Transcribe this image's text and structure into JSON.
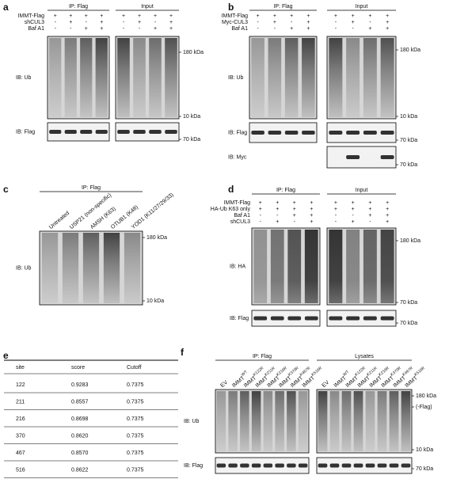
{
  "panels": [
    {
      "label": "a",
      "groups": [
        "IP: Flag",
        "Input"
      ],
      "conditions": [
        {
          "name": "IMMT-Flag",
          "signs": [
            "+",
            "+",
            "+",
            "+",
            "+",
            "+",
            "+",
            "+"
          ]
        },
        {
          "name": "shCUL3",
          "signs": [
            "-",
            "+",
            "-",
            "+",
            "-",
            "+",
            "-",
            "+"
          ]
        },
        {
          "name": "Baf A1",
          "signs": [
            "-",
            "-",
            "+",
            "+",
            "-",
            "-",
            "+",
            "+"
          ]
        }
      ],
      "blots": [
        {
          "label": "IB: Ub",
          "markers": [
            "180 kDa",
            "10 kDa"
          ]
        },
        {
          "label": "IB: Flag",
          "markers": [
            "70 kDa"
          ]
        }
      ]
    },
    {
      "label": "b",
      "groups": [
        "IP: Flag",
        "Input"
      ],
      "conditions": [
        {
          "name": "IMMT-Flag",
          "signs": [
            "+",
            "+",
            "+",
            "+",
            "+",
            "+",
            "+",
            "+"
          ]
        },
        {
          "name": "Myc-CUL3",
          "signs": [
            "-",
            "+",
            "-",
            "+",
            "-",
            "+",
            "-",
            "+"
          ]
        },
        {
          "name": "Baf A1",
          "signs": [
            "-",
            "-",
            "+",
            "+",
            "-",
            "-",
            "+",
            "+"
          ]
        }
      ],
      "blots": [
        {
          "label": "IB: Ub",
          "markers": [
            "180 kDa",
            "10 kDa"
          ]
        },
        {
          "label": "IB: Flag",
          "markers": [
            "70 kDa"
          ]
        },
        {
          "label": "IB: Myc",
          "markers": [
            "70 kDa"
          ]
        }
      ]
    },
    {
      "label": "c",
      "groups": [
        "IP: Flag"
      ],
      "lanes": [
        {
          "name": "Untreated"
        },
        {
          "name": "USP21 (non-specific)"
        },
        {
          "name": "AMSH (K63)"
        },
        {
          "name": "OTUB1 (K48)"
        },
        {
          "name": "YOD1 (K11/27/29/33)"
        }
      ],
      "blots": [
        {
          "label": "IB: Ub",
          "markers": [
            "180 kDa",
            "10 kDa"
          ]
        }
      ]
    },
    {
      "label": "d",
      "groups": [
        "IP: Flag",
        "Input"
      ],
      "conditions": [
        {
          "name": "IMMT-Flag",
          "signs": [
            "+",
            "+",
            "+",
            "+",
            "+",
            "+",
            "+",
            "+"
          ]
        },
        {
          "name": "HA-Ub K63 only",
          "signs": [
            "+",
            "+",
            "+",
            "+",
            "+",
            "+",
            "+",
            "+"
          ]
        },
        {
          "name": "Baf A1",
          "signs": [
            "-",
            "-",
            "+",
            "+",
            "-",
            "-",
            "+",
            "+"
          ]
        },
        {
          "name": "shCUL3",
          "signs": [
            "-",
            "+",
            "-",
            "+",
            "-",
            "+",
            "-",
            "+"
          ]
        }
      ],
      "blots": [
        {
          "label": "IB: HA",
          "markers": [
            "180 kDa",
            "70 kDa"
          ]
        },
        {
          "label": "IB: Flag",
          "markers": [
            "70 kDa"
          ]
        }
      ]
    },
    {
      "label": "e",
      "table": {
        "header": [
          "site",
          "score",
          "Cutoff"
        ],
        "rows": [
          [
            "122",
            "0.9283",
            "0.7375"
          ],
          [
            "211",
            "0.8557",
            "0.7375"
          ],
          [
            "216",
            "0.8698",
            "0.7375"
          ],
          [
            "370",
            "0.8620",
            "0.7375"
          ],
          [
            "467",
            "0.8570",
            "0.7375"
          ],
          [
            "516",
            "0.8622",
            "0.7375"
          ]
        ]
      }
    },
    {
      "label": "f",
      "groups": [
        "IP: Flag",
        "Lysates"
      ],
      "lanes": [
        {
          "name": "EV"
        },
        {
          "name": "IMMT",
          "sup": "WT"
        },
        {
          "name": "IMMT",
          "sup": "K122R"
        },
        {
          "name": "IMMT",
          "sup": "K211R"
        },
        {
          "name": "IMMT",
          "sup": "K216R"
        },
        {
          "name": "IMMT",
          "sup": "K370R"
        },
        {
          "name": "IMMT",
          "sup": "K467R"
        },
        {
          "name": "IMMT",
          "sup": "K516R"
        },
        {
          "name": "EV"
        },
        {
          "name": "IMMT",
          "sup": "WT"
        },
        {
          "name": "IMMT",
          "sup": "K122R"
        },
        {
          "name": "IMMT",
          "sup": "K211R"
        },
        {
          "name": "IMMT",
          "sup": "K216R"
        },
        {
          "name": "IMMT",
          "sup": "K370R"
        },
        {
          "name": "IMMT",
          "sup": "K467R"
        },
        {
          "name": "IMMT",
          "sup": "K516R"
        }
      ],
      "blots": [
        {
          "label": "IB: Ub",
          "markers": [
            "180 kDa",
            "(-Flag)",
            "10 kDa"
          ]
        },
        {
          "label": "IB: Flag",
          "markers": [
            "70 kDa"
          ]
        }
      ]
    }
  ]
}
